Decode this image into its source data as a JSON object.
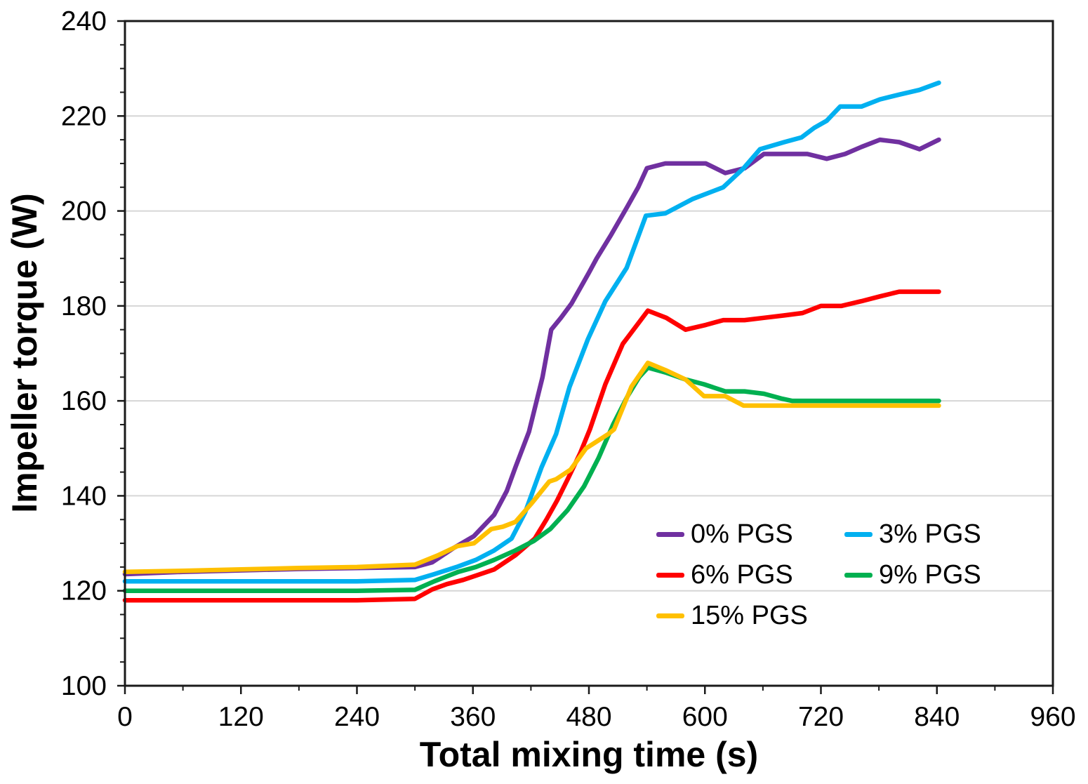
{
  "chart_data": {
    "type": "line",
    "title": "",
    "xlabel": "Total mixing time (s)",
    "ylabel": "Impeller torque (W)",
    "xlim": [
      0,
      960
    ],
    "ylim": [
      100,
      240
    ],
    "x_major_ticks": [
      0,
      120,
      240,
      360,
      480,
      600,
      720,
      840,
      960
    ],
    "x_minor_step": 60,
    "y_major_ticks": [
      100,
      120,
      140,
      160,
      180,
      200,
      220,
      240
    ],
    "y_minor_step": 5,
    "grid": "horizontal-major",
    "plot_border": true,
    "legend_position": "inside-lower-right",
    "legend_columns": 2,
    "series": [
      {
        "name": "0% PGS",
        "color": "#7030A0",
        "points": [
          [
            0,
            123.5
          ],
          [
            60,
            124
          ],
          [
            120,
            124.3
          ],
          [
            180,
            124.6
          ],
          [
            240,
            124.8
          ],
          [
            300,
            125
          ],
          [
            318,
            126
          ],
          [
            340,
            129
          ],
          [
            361,
            131.5
          ],
          [
            382,
            136
          ],
          [
            395,
            141
          ],
          [
            404,
            146
          ],
          [
            418,
            153.5
          ],
          [
            432,
            165
          ],
          [
            441,
            175
          ],
          [
            451,
            177.5
          ],
          [
            462,
            180.5
          ],
          [
            480,
            187
          ],
          [
            488,
            190
          ],
          [
            503,
            195
          ],
          [
            520,
            201
          ],
          [
            531,
            205
          ],
          [
            540,
            209
          ],
          [
            559,
            210
          ],
          [
            580,
            210
          ],
          [
            601,
            210
          ],
          [
            621,
            208
          ],
          [
            641,
            209
          ],
          [
            661,
            212
          ],
          [
            682,
            212
          ],
          [
            706,
            212
          ],
          [
            726,
            211
          ],
          [
            745,
            212
          ],
          [
            762,
            213.5
          ],
          [
            781,
            215
          ],
          [
            801,
            214.5
          ],
          [
            822,
            213
          ],
          [
            842,
            215
          ]
        ]
      },
      {
        "name": "3% PGS",
        "color": "#00B0F0",
        "points": [
          [
            0,
            122
          ],
          [
            120,
            122
          ],
          [
            240,
            122
          ],
          [
            300,
            122.3
          ],
          [
            320,
            123.5
          ],
          [
            343,
            125
          ],
          [
            363,
            126.5
          ],
          [
            382,
            128.5
          ],
          [
            400,
            131
          ],
          [
            414,
            136.5
          ],
          [
            431,
            146
          ],
          [
            446,
            153
          ],
          [
            460,
            163
          ],
          [
            479,
            173
          ],
          [
            497,
            181
          ],
          [
            519,
            188
          ],
          [
            539,
            199
          ],
          [
            559,
            199.5
          ],
          [
            587,
            202.5
          ],
          [
            619,
            205
          ],
          [
            640,
            209
          ],
          [
            657,
            213
          ],
          [
            682,
            214.5
          ],
          [
            700,
            215.5
          ],
          [
            713,
            217.5
          ],
          [
            726,
            219
          ],
          [
            740,
            222
          ],
          [
            762,
            222
          ],
          [
            781,
            223.5
          ],
          [
            801,
            224.5
          ],
          [
            822,
            225.5
          ],
          [
            842,
            227
          ]
        ]
      },
      {
        "name": "6% PGS",
        "color": "#FF0000",
        "points": [
          [
            0,
            118
          ],
          [
            120,
            118
          ],
          [
            240,
            118
          ],
          [
            300,
            118.3
          ],
          [
            318,
            120.3
          ],
          [
            333,
            121.4
          ],
          [
            350,
            122.3
          ],
          [
            382,
            124.5
          ],
          [
            404,
            127.5
          ],
          [
            424,
            131
          ],
          [
            436,
            135
          ],
          [
            447,
            139
          ],
          [
            458,
            143.5
          ],
          [
            471,
            149
          ],
          [
            481,
            154
          ],
          [
            497,
            163.5
          ],
          [
            515,
            172
          ],
          [
            541,
            179
          ],
          [
            560,
            177.5
          ],
          [
            580,
            175
          ],
          [
            601,
            176
          ],
          [
            619,
            177
          ],
          [
            641,
            177
          ],
          [
            661,
            177.5
          ],
          [
            682,
            178
          ],
          [
            701,
            178.5
          ],
          [
            720,
            180
          ],
          [
            741,
            180
          ],
          [
            762,
            181
          ],
          [
            781,
            182
          ],
          [
            801,
            183
          ],
          [
            842,
            183
          ]
        ]
      },
      {
        "name": "9% PGS",
        "color": "#00B050",
        "points": [
          [
            0,
            120
          ],
          [
            120,
            120
          ],
          [
            240,
            120
          ],
          [
            300,
            120.2
          ],
          [
            320,
            122
          ],
          [
            345,
            124
          ],
          [
            363,
            125
          ],
          [
            382,
            126.5
          ],
          [
            404,
            128.5
          ],
          [
            423,
            130.5
          ],
          [
            440,
            133
          ],
          [
            458,
            137
          ],
          [
            475,
            142
          ],
          [
            490,
            148
          ],
          [
            505,
            155
          ],
          [
            520,
            161
          ],
          [
            532,
            165
          ],
          [
            541,
            167
          ],
          [
            559,
            166
          ],
          [
            580,
            164.5
          ],
          [
            599,
            163.5
          ],
          [
            621,
            162
          ],
          [
            641,
            162
          ],
          [
            661,
            161.5
          ],
          [
            679,
            160.5
          ],
          [
            690,
            160
          ],
          [
            720,
            160
          ],
          [
            762,
            160
          ],
          [
            801,
            160
          ],
          [
            842,
            160
          ]
        ]
      },
      {
        "name": "15% PGS",
        "color": "#FFC000",
        "points": [
          [
            0,
            124
          ],
          [
            60,
            124.2
          ],
          [
            120,
            124.5
          ],
          [
            180,
            124.8
          ],
          [
            240,
            125
          ],
          [
            300,
            125.5
          ],
          [
            323,
            127.4
          ],
          [
            344,
            129.4
          ],
          [
            361,
            130
          ],
          [
            379,
            133
          ],
          [
            391,
            133.5
          ],
          [
            404,
            134.5
          ],
          [
            421,
            138.5
          ],
          [
            439,
            143
          ],
          [
            446,
            143.5
          ],
          [
            461,
            145.5
          ],
          [
            477,
            150
          ],
          [
            500,
            153
          ],
          [
            506,
            154
          ],
          [
            524,
            163
          ],
          [
            541,
            168
          ],
          [
            559,
            166.5
          ],
          [
            580,
            164.5
          ],
          [
            599,
            161
          ],
          [
            621,
            161
          ],
          [
            640,
            159
          ],
          [
            661,
            159
          ],
          [
            700,
            159
          ],
          [
            762,
            159
          ],
          [
            801,
            159
          ],
          [
            842,
            159
          ]
        ]
      }
    ]
  }
}
